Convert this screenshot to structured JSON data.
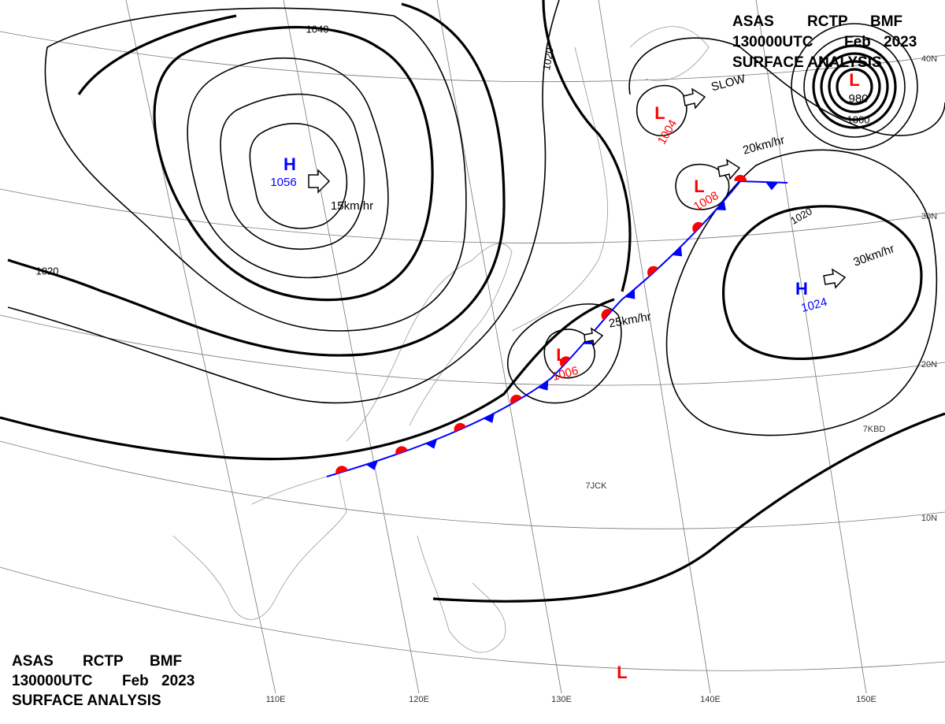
{
  "header": {
    "line1": [
      "ASAS",
      "RCTP",
      "BMF"
    ],
    "line2": [
      "130000UTC",
      "Feb",
      "2023"
    ],
    "line3": "SURFACE ANALYSIS"
  },
  "footer": {
    "line1": [
      "ASAS",
      "RCTP",
      "BMF"
    ],
    "line2": [
      "130000UTC",
      "Feb",
      "2023"
    ],
    "line3": "SURFACE ANALYSIS"
  },
  "pressure_systems": [
    {
      "label": "H",
      "value": "1056",
      "color": "#0000ff"
    },
    {
      "label": "L",
      "value": "1004",
      "color": "#ff0000"
    },
    {
      "label": "L",
      "value": "1008",
      "color": "#ff0000"
    },
    {
      "label": "L",
      "value": "1006",
      "color": "#ff0000"
    },
    {
      "label": "H",
      "value": "1024",
      "color": "#0000ff"
    },
    {
      "label": "L",
      "value": "980",
      "color": "#ff0000"
    },
    {
      "label": "L",
      "color": "#ff0000"
    }
  ],
  "isobar_labels": [
    "1040",
    "1020",
    "1020",
    "1020",
    "1000"
  ],
  "motion_labels": [
    "15km/hr",
    "SLOW",
    "20km/hr",
    "25km/hr",
    "30km/hr"
  ],
  "lat_labels": [
    "40N",
    "30N",
    "20N",
    "10N"
  ],
  "lon_labels": [
    "110E",
    "120E",
    "130E",
    "140E",
    "150E"
  ],
  "station_ids": [
    "7JCK",
    "7KBD"
  ]
}
